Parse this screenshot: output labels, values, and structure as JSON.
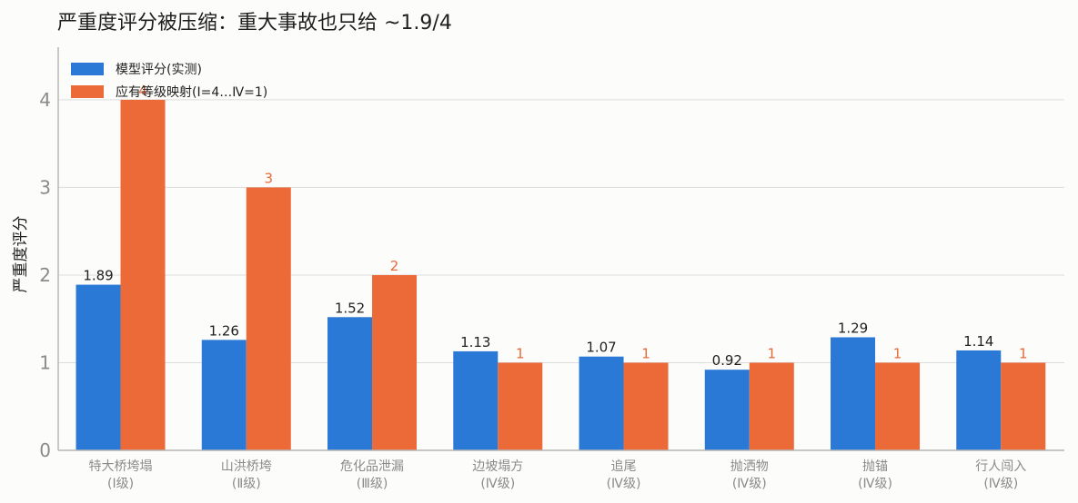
{
  "chart_data": {
    "type": "bar",
    "title": "严重度评分被压缩：重大事故也只给 ~1.9/4",
    "xlabel": "",
    "ylabel": "严重度评分",
    "ylim": [
      0,
      4.6
    ],
    "yticks": [
      0,
      1,
      2,
      3,
      4
    ],
    "grid": true,
    "legend_position": "top-left",
    "categories": [
      [
        "特大桥垮塌",
        "(Ⅰ级)"
      ],
      [
        "山洪桥垮",
        "(Ⅱ级)"
      ],
      [
        "危化品泄漏",
        "(Ⅲ级)"
      ],
      [
        "边坡塌方",
        "(Ⅳ级)"
      ],
      [
        "追尾",
        "(Ⅳ级)"
      ],
      [
        "抛洒物",
        "(Ⅳ级)"
      ],
      [
        "抛锚",
        "(Ⅳ级)"
      ],
      [
        "行人闯入",
        "(Ⅳ级)"
      ]
    ],
    "series": [
      {
        "name": "模型评分(实测)",
        "color": "#2b79d6",
        "values": [
          1.89,
          1.26,
          1.52,
          1.13,
          1.07,
          0.92,
          1.29,
          1.14
        ],
        "labels": [
          "1.89",
          "1.26",
          "1.52",
          "1.13",
          "1.07",
          "0.92",
          "1.29",
          "1.14"
        ]
      },
      {
        "name": "应有等级映射(Ⅰ=4…Ⅳ=1)",
        "color": "#eb6a37",
        "values": [
          4,
          3,
          2,
          1,
          1,
          1,
          1,
          1
        ],
        "labels": [
          "4",
          "3",
          "2",
          "1",
          "1",
          "1",
          "1",
          "1"
        ]
      }
    ]
  }
}
